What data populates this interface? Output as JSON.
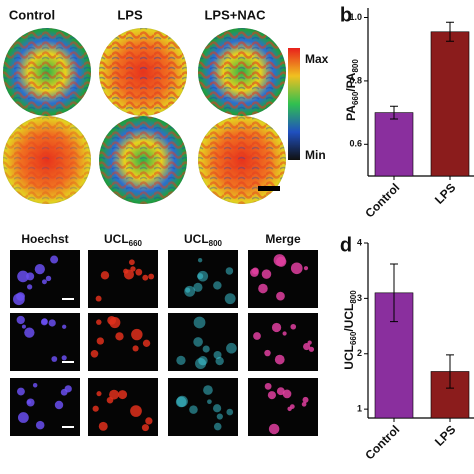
{
  "panel_a": {
    "col_labels": [
      "Control",
      "LPS",
      "LPS+NAC"
    ],
    "colorbar": [
      "Max",
      "Min"
    ]
  },
  "panel_c": {
    "col_labels": [
      [
        "Hoechst"
      ],
      [
        "UCL",
        "660"
      ],
      [
        "UCL",
        "800"
      ],
      [
        "Merge"
      ]
    ]
  },
  "chart_data": [
    {
      "type": "bar",
      "panel": "b",
      "ylabel": [
        "PA",
        "660",
        "/PA",
        "800"
      ],
      "categories": [
        "Control",
        "LPS"
      ],
      "values": [
        0.7,
        0.955
      ],
      "errors": [
        0.02,
        0.03
      ],
      "colors": [
        "#8a2f9e",
        "#8b1c1c"
      ],
      "ylim": [
        0.5,
        1.03
      ],
      "yticks": [
        {
          "value": 0.6,
          "label": "0.6"
        },
        {
          "value": 0.8,
          "label": "0.8"
        },
        {
          "value": 1.0,
          "label": "1.0"
        }
      ]
    },
    {
      "type": "bar",
      "panel": "d",
      "ylabel": [
        "UCL",
        "660",
        "/UCL",
        "800"
      ],
      "categories": [
        "Control",
        "LPS"
      ],
      "values": [
        3.1,
        1.68
      ],
      "errors": [
        0.52,
        0.3
      ],
      "colors": [
        "#8a2f9e",
        "#8b1c1c"
      ],
      "ylim": [
        0.84,
        4.0
      ],
      "yticks": [
        1,
        2,
        3,
        4
      ]
    }
  ]
}
